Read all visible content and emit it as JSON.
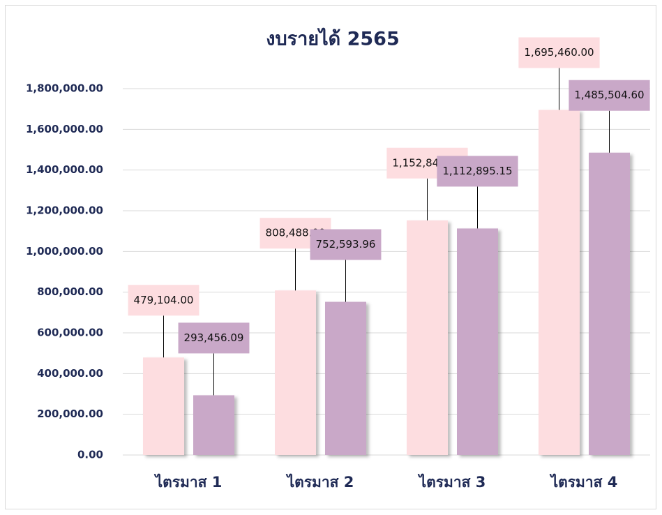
{
  "chart_data": {
    "type": "bar",
    "title": "งบรายได้ 2565",
    "categories": [
      "ไตรมาส 1",
      "ไตรมาส 2",
      "ไตรมาส 3",
      "ไตรมาส 4"
    ],
    "series": [
      {
        "color": "#fddde0",
        "values": [
          479104,
          808488,
          1152844,
          1695460
        ],
        "value_labels": [
          "479,104.00",
          "808,488.00",
          "1,152,844.00",
          "1,695,460.00"
        ]
      },
      {
        "color": "#c9a8c8",
        "values": [
          293456.09,
          752593.96,
          1112895.15,
          1485504.6
        ],
        "value_labels": [
          "293,456.09",
          "752,593.96",
          "1,112,895.15",
          "1,485,504.60"
        ]
      }
    ],
    "ylim": [
      0,
      1800000
    ],
    "yticks": [
      {
        "value": 0,
        "label": "0.00"
      },
      {
        "value": 200000,
        "label": "200,000.00"
      },
      {
        "value": 400000,
        "label": "400,000.00"
      },
      {
        "value": 600000,
        "label": "600,000.00"
      },
      {
        "value": 800000,
        "label": "800,000.00"
      },
      {
        "value": 1000000,
        "label": "1,000,000.00"
      },
      {
        "value": 1200000,
        "label": "1,200,000.00"
      },
      {
        "value": 1400000,
        "label": "1,400,000.00"
      },
      {
        "value": 1600000,
        "label": "1,600,000.00"
      },
      {
        "value": 1800000,
        "label": "1,800,000.00"
      }
    ],
    "grid": true
  }
}
